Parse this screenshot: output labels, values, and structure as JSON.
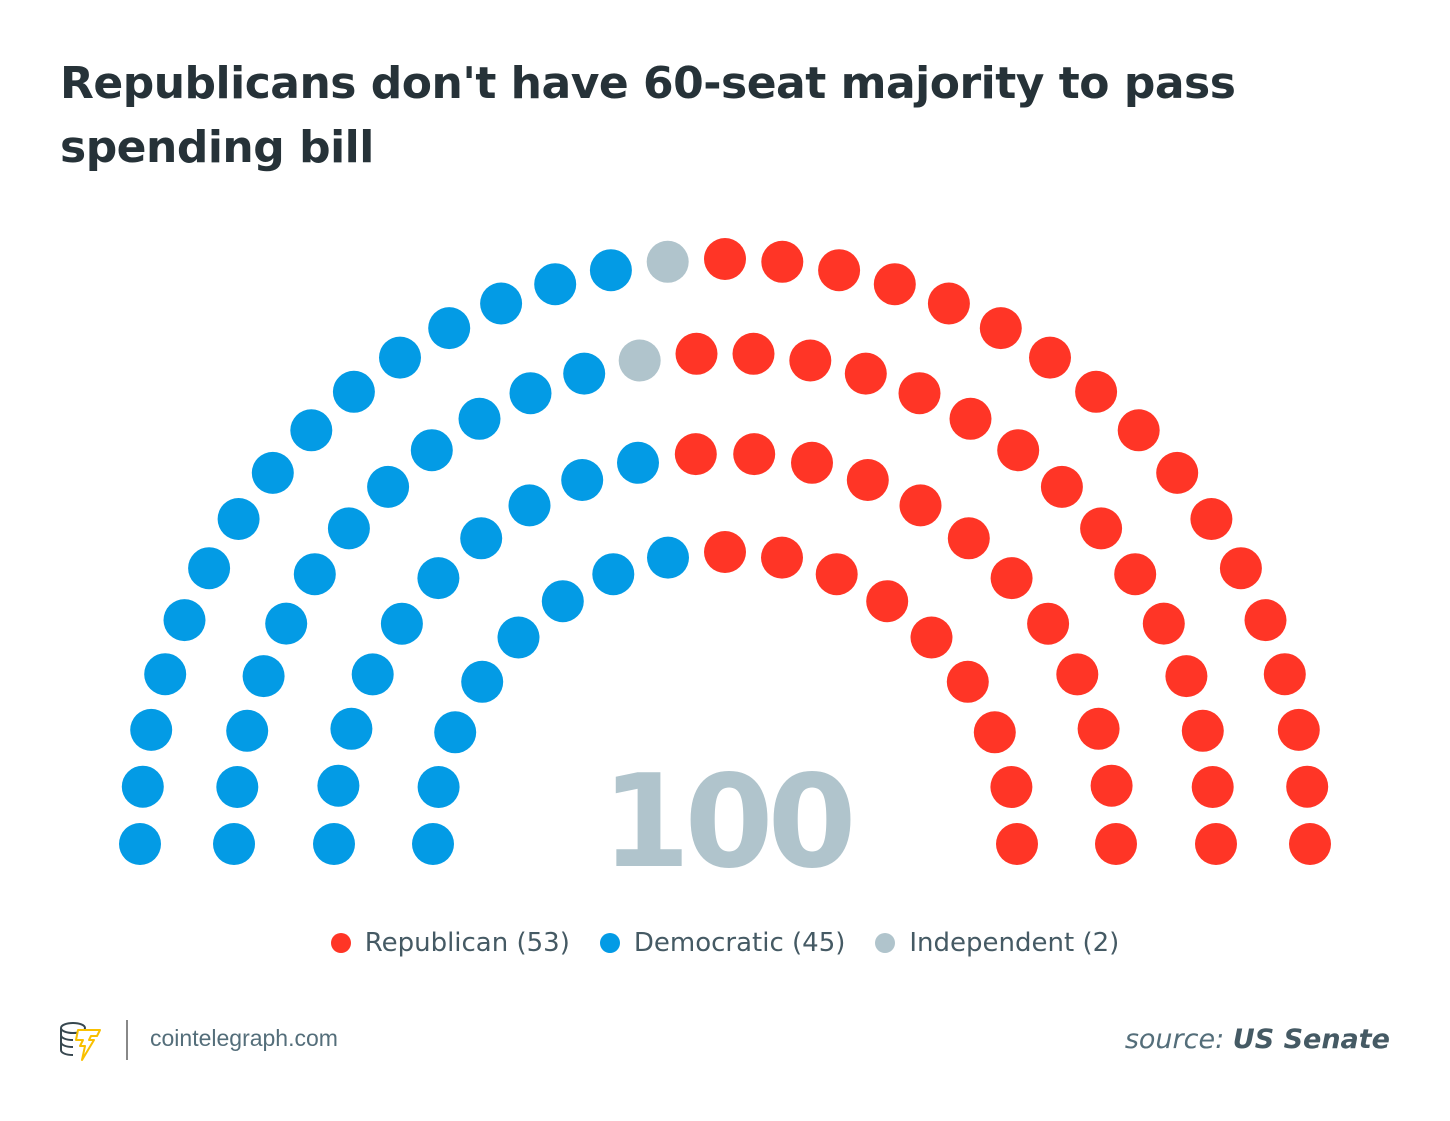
{
  "title": "Republicans don't have 60-seat majority to pass spending bill",
  "chart_data": {
    "type": "parliament",
    "title": "Republicans don't have 60-seat majority to pass spending bill",
    "total": 100,
    "total_label": "100",
    "parties": [
      {
        "name": "Democratic",
        "seats": 45,
        "color": "#039be5",
        "label": "Democratic (45)"
      },
      {
        "name": "Independent",
        "seats": 2,
        "color": "#b0c4cc",
        "label": "Independent (2)"
      },
      {
        "name": "Republican",
        "seats": 53,
        "color": "#ff3526",
        "label": "Republican (53)"
      }
    ],
    "legend_order": [
      "Republican",
      "Democratic",
      "Independent"
    ],
    "legend_position": "bottom-center"
  },
  "footer": {
    "site": "cointelegraph.com",
    "source_prefix": "source:",
    "source_name": "US Senate"
  }
}
